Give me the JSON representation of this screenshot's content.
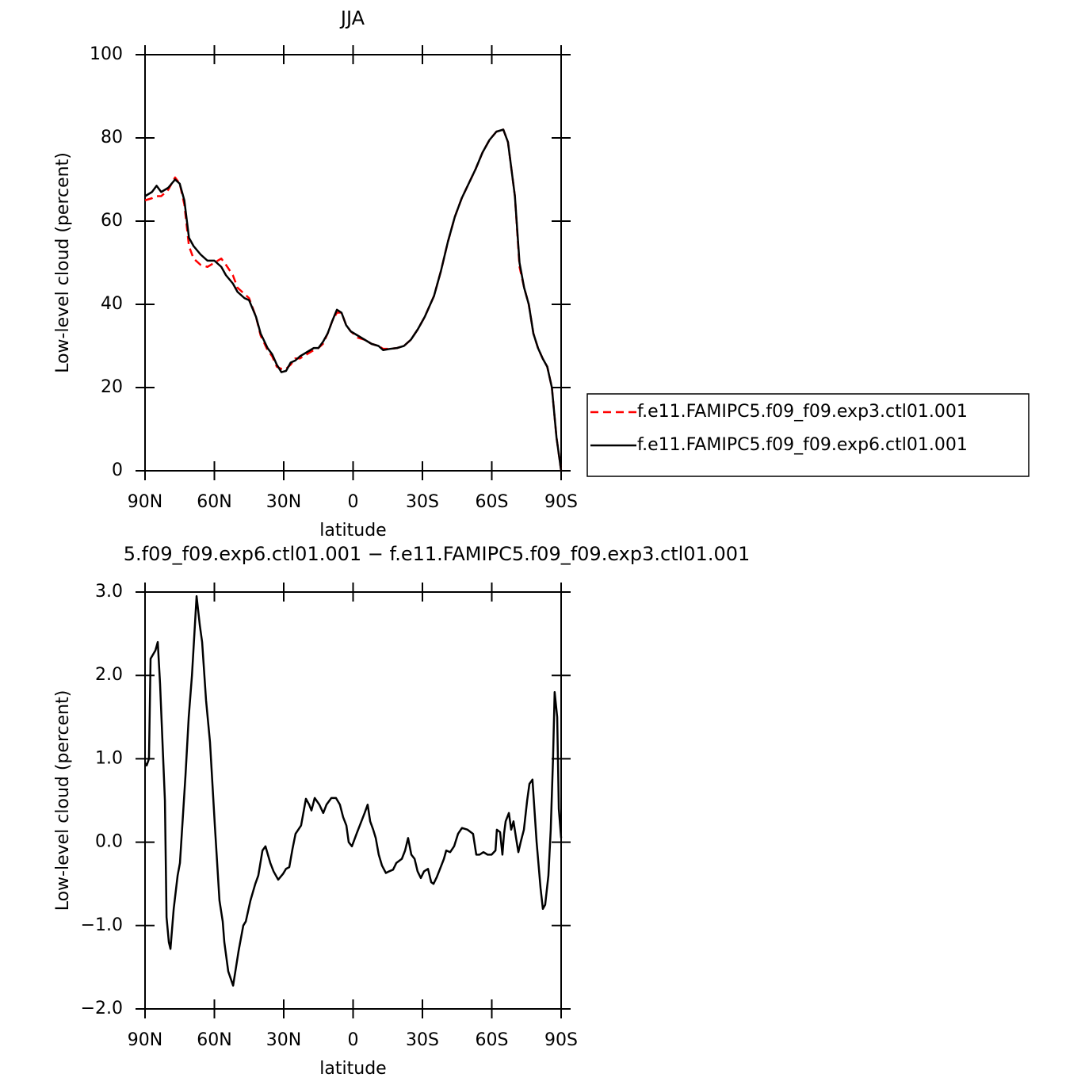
{
  "chart_data": [
    {
      "type": "line",
      "title": "JJA",
      "x_label": "latitude",
      "y_label": "Low-level cloud (percent)",
      "x": [
        90,
        87,
        85,
        83,
        80,
        77,
        75,
        73,
        71,
        69,
        66,
        63,
        60,
        57,
        55,
        52,
        50,
        47,
        45,
        42,
        40,
        37,
        35,
        33,
        31,
        29,
        27,
        25,
        23,
        20,
        17,
        15,
        13,
        11,
        9,
        7,
        5,
        3,
        1,
        -2,
        -5,
        -8,
        -11,
        -13,
        -16,
        -19,
        -22,
        -25,
        -28,
        -31,
        -35,
        -38,
        -41,
        -44,
        -47,
        -50,
        -53,
        -56,
        -59,
        -62,
        -65,
        -67,
        -70,
        -72,
        -74,
        -76,
        -78,
        -80,
        -82,
        -84,
        -86,
        -88,
        -90
      ],
      "series": [
        {
          "name": "f.e11.FAMIPC5.f09_f09.exp3.ctl01.001",
          "color": "#ff0000",
          "line_style": "dashed",
          "values": [
            65,
            65.5,
            66,
            66,
            67.5,
            70.5,
            69,
            64,
            54,
            51,
            49.5,
            49,
            50,
            51,
            49.5,
            47,
            44,
            42.5,
            41.5,
            37,
            32.5,
            29,
            27.5,
            25,
            24.5,
            24.5,
            25.5,
            27,
            27,
            28,
            29,
            29.5,
            30.5,
            33,
            36,
            38,
            38,
            35,
            33.5,
            32,
            31.5,
            30.5,
            30,
            29.3,
            29.3,
            29.5,
            30,
            31.5,
            34,
            37,
            42,
            48,
            55,
            61,
            65.5,
            69,
            72.5,
            76.5,
            79.5,
            81.5,
            82,
            79,
            66,
            49,
            44,
            40,
            33,
            29.5,
            27,
            25,
            20,
            8,
            0
          ]
        },
        {
          "name": "f.e11.FAMIPC5.f09_f09.exp6.ctl01.001",
          "color": "#000000",
          "line_style": "solid",
          "values": [
            66,
            67,
            68.5,
            67,
            68,
            70,
            69,
            65,
            56,
            54,
            52,
            50.5,
            50.5,
            49,
            47,
            45,
            43,
            41.5,
            41,
            37,
            33,
            29.5,
            28,
            25.5,
            23.7,
            24,
            26,
            26.5,
            27.5,
            28.5,
            29.5,
            29.5,
            31,
            33,
            36,
            38.7,
            38,
            35,
            33.5,
            32.5,
            31.5,
            30.5,
            30,
            29,
            29.3,
            29.5,
            30,
            31.5,
            34,
            37,
            42,
            48,
            55,
            61,
            65.5,
            69,
            72.5,
            76.5,
            79.5,
            81.5,
            82,
            79,
            66,
            50,
            44,
            40,
            33,
            29.5,
            27,
            25,
            20,
            8,
            0
          ]
        }
      ],
      "xlim": [
        90,
        -90
      ],
      "xticks": [
        {
          "value": 90,
          "label": "90N"
        },
        {
          "value": 60,
          "label": "60N"
        },
        {
          "value": 30,
          "label": "30N"
        },
        0,
        {
          "value": -30,
          "label": "30S"
        },
        {
          "value": -60,
          "label": "60S"
        },
        {
          "value": -90,
          "label": "90S"
        }
      ],
      "ylim": [
        0,
        100
      ],
      "yticks": [
        0,
        20,
        40,
        60,
        80,
        100
      ],
      "legend": "right"
    },
    {
      "type": "line",
      "title": "5.f09_f09.exp6.ctl01.001 − f.e11.FAMIPC5.f09_f09.exp3.ctl01.001",
      "x_label": "latitude",
      "y_label": "Low-level cloud (percent)",
      "x": [
        90.0,
        89.3,
        88.3,
        87.6,
        85.5,
        84.5,
        83.5,
        81.4,
        80.7,
        79.7,
        79.0,
        77.6,
        75.9,
        74.9,
        72.5,
        71.1,
        69.7,
        67.7,
        66.3,
        65.3,
        63.6,
        61.9,
        59.8,
        57.8,
        56.4,
        55.7,
        54.0,
        51.9,
        49.5,
        47.5,
        46.4,
        44.4,
        42.3,
        41.0,
        39.2,
        37.9,
        35.8,
        34.4,
        32.4,
        30.3,
        29.0,
        27.6,
        26.2,
        24.9,
        22.5,
        20.4,
        19.0,
        18.0,
        16.6,
        14.6,
        12.9,
        11.5,
        9.4,
        7.4,
        5.7,
        4.3,
        2.9,
        1.9,
        0.5,
        -1.5,
        -3.6,
        -5.0,
        -6.3,
        -7.4,
        -8.7,
        -9.8,
        -11.1,
        -12.5,
        -14.2,
        -15.6,
        -17.3,
        -18.7,
        -21.1,
        -22.5,
        -23.8,
        -25.2,
        -26.6,
        -27.9,
        -29.3,
        -30.7,
        -32.4,
        -33.8,
        -34.8,
        -36.2,
        -37.9,
        -39.3,
        -40.3,
        -42.0,
        -43.7,
        -45.4,
        -47.1,
        -49.5,
        -51.9,
        -53.3,
        -54.7,
        -56.4,
        -58.2,
        -59.9,
        -61.6,
        -62.2,
        -63.6,
        -64.6,
        -65.3,
        -66.0,
        -67.4,
        -68.4,
        -69.4,
        -70.5,
        -71.5,
        -72.5,
        -73.9,
        -75.3,
        -76.3,
        -77.6,
        -79.4,
        -81.1,
        -82.1,
        -83.1,
        -84.5,
        -85.5,
        -86.5,
        -87.2,
        -88.3,
        -89.0,
        -90.0
      ],
      "values": [
        0.95,
        0.92,
        1.0,
        2.2,
        2.3,
        2.4,
        1.9,
        0.5,
        -0.9,
        -1.2,
        -1.28,
        -0.8,
        -0.4,
        -0.25,
        0.8,
        1.5,
        2.0,
        2.95,
        2.6,
        2.4,
        1.7,
        1.2,
        0.2,
        -0.7,
        -0.95,
        -1.2,
        -1.55,
        -1.72,
        -1.3,
        -1.0,
        -0.95,
        -0.7,
        -0.5,
        -0.4,
        -0.1,
        -0.05,
        -0.25,
        -0.35,
        -0.45,
        -0.38,
        -0.32,
        -0.3,
        -0.08,
        0.1,
        0.2,
        0.52,
        0.45,
        0.38,
        0.53,
        0.45,
        0.35,
        0.45,
        0.53,
        0.53,
        0.45,
        0.3,
        0.2,
        0.0,
        -0.05,
        0.1,
        0.25,
        0.35,
        0.45,
        0.25,
        0.15,
        0.05,
        -0.15,
        -0.28,
        -0.37,
        -0.35,
        -0.33,
        -0.25,
        -0.2,
        -0.1,
        0.05,
        -0.15,
        -0.2,
        -0.35,
        -0.43,
        -0.35,
        -0.32,
        -0.48,
        -0.5,
        -0.42,
        -0.3,
        -0.2,
        -0.1,
        -0.12,
        -0.05,
        0.1,
        0.17,
        0.15,
        0.1,
        -0.15,
        -0.15,
        -0.12,
        -0.15,
        -0.15,
        -0.1,
        0.15,
        0.12,
        -0.15,
        0.1,
        0.25,
        0.35,
        0.15,
        0.25,
        0.05,
        -0.12,
        0.0,
        0.15,
        0.5,
        0.7,
        0.75,
        0.0,
        -0.55,
        -0.8,
        -0.75,
        -0.4,
        0.15,
        1.0,
        1.8,
        1.5,
        0.4,
        0.05
      ],
      "color": "#000000",
      "xlim": [
        90,
        -90
      ],
      "xticks": [
        {
          "value": 90,
          "label": "90N"
        },
        {
          "value": 60,
          "label": "60N"
        },
        {
          "value": 30,
          "label": "30N"
        },
        0,
        {
          "value": -30,
          "label": "30S"
        },
        {
          "value": -60,
          "label": "60S"
        },
        {
          "value": -90,
          "label": "90S"
        }
      ],
      "ylim": [
        -2,
        3
      ],
      "yticks": [
        {
          "value": -2,
          "label": "−2.0"
        },
        {
          "value": -1,
          "label": "−1.0"
        },
        {
          "value": 0,
          "label": "0.0"
        },
        {
          "value": 1,
          "label": "1.0"
        },
        {
          "value": 2,
          "label": "2.0"
        },
        {
          "value": 3,
          "label": "3.0"
        }
      ]
    }
  ]
}
